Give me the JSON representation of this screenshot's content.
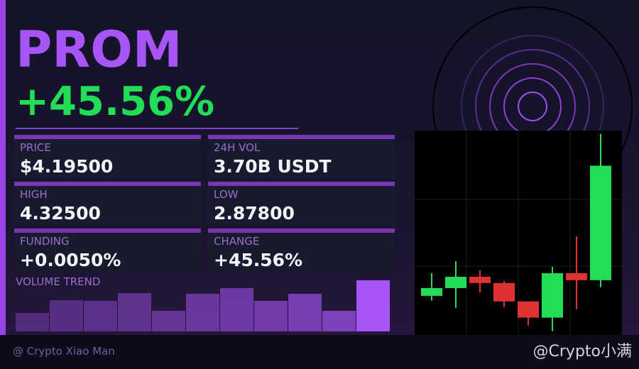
{
  "header": {
    "symbol": "PROM",
    "change": "+45.56%"
  },
  "stats": [
    {
      "label": "PRICE",
      "value": "$4.19500"
    },
    {
      "label": "24H VOL",
      "value": "3.70B USDT"
    },
    {
      "label": "HIGH",
      "value": "4.32500"
    },
    {
      "label": "LOW",
      "value": "2.87800"
    },
    {
      "label": "FUNDING",
      "value": "+0.0050%"
    },
    {
      "label": "CHANGE",
      "value": "+45.56%"
    }
  ],
  "volume_trend": {
    "type": "bar",
    "title": "VOLUME TREND",
    "values": [
      26,
      44,
      43,
      54,
      29,
      53,
      61,
      43,
      53,
      29,
      72
    ],
    "ylim": [
      0,
      72
    ],
    "color": "#a855f7"
  },
  "candles": {
    "type": "candlestick",
    "open": [
      3.137,
      3.194,
      3.277,
      3.231,
      3.096,
      2.977,
      3.303,
      3.252
    ],
    "high": [
      3.303,
      3.392,
      3.324,
      3.246,
      3.096,
      3.35,
      3.573,
      4.325
    ],
    "low": [
      3.101,
      3.049,
      3.163,
      3.054,
      2.92,
      2.878,
      3.039,
      3.2
    ],
    "close": [
      3.194,
      3.277,
      3.231,
      3.096,
      2.977,
      3.303,
      3.252,
      4.092
    ],
    "ylim": [
      2.85,
      4.35
    ],
    "up_color": "#22dd55",
    "down_color": "#dd3333"
  },
  "footer": {
    "author": "@ Crypto Xiao Man",
    "watermark": "@Crypto小满"
  }
}
